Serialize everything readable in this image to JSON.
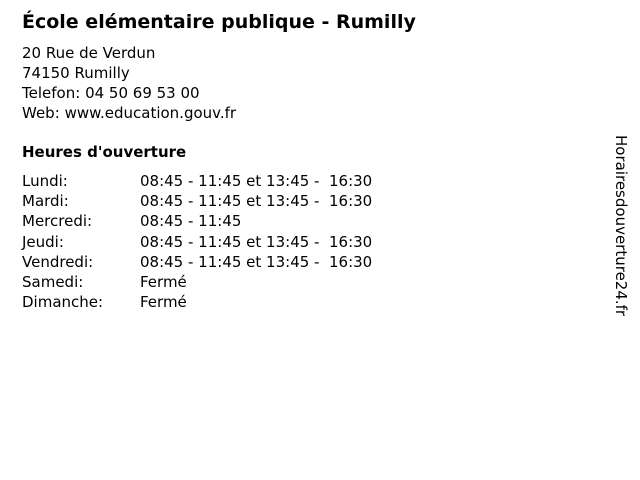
{
  "colors": {
    "background": "#ffffff",
    "text": "#000000"
  },
  "header": {
    "title": "École elémentaire publique - Rumilly",
    "address_lines": [
      "20 Rue de Verdun",
      "74150 Rumilly"
    ],
    "phone_label": "Telefon:",
    "phone_value": "04 50 69 53 00",
    "web_label": "Web:",
    "web_value": "www.education.gouv.fr"
  },
  "hours": {
    "heading": "Heures d'ouverture",
    "rows": [
      {
        "day": "Lundi:",
        "hours": "08:45 - 11:45 et 13:45 -  16:30"
      },
      {
        "day": "Mardi:",
        "hours": "08:45 - 11:45 et 13:45 -  16:30"
      },
      {
        "day": "Mercredi:",
        "hours": "08:45 - 11:45"
      },
      {
        "day": "Jeudi:",
        "hours": "08:45 - 11:45 et 13:45 -  16:30"
      },
      {
        "day": "Vendredi:",
        "hours": "08:45 - 11:45 et 13:45 -  16:30"
      },
      {
        "day": "Samedi:",
        "hours": "Fermé"
      },
      {
        "day": "Dimanche:",
        "hours": "Fermé"
      }
    ]
  },
  "branding": {
    "text": "Horairesdouverture24.fr"
  }
}
